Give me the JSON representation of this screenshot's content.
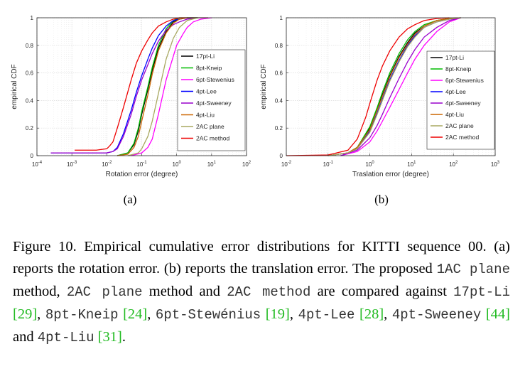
{
  "chart_data": [
    {
      "type": "line",
      "xscale": "log",
      "xlim": [
        0.0001,
        100
      ],
      "ylim": [
        0,
        1
      ],
      "xlabel": "Rotation error (degree)",
      "ylabel": "empirical CDF",
      "xticklabels": [
        "10-4",
        "10-3",
        "10-2",
        "10-1",
        "100",
        "101",
        "102"
      ],
      "yticklabels": [
        "0",
        "0.2",
        "0.4",
        "0.6",
        "0.8",
        "1"
      ],
      "grid": true,
      "legend_position": "right",
      "sublabel": "(a)",
      "series": [
        {
          "name": "17pt-Li",
          "color": "#000000",
          "x": [
            0.02,
            0.04,
            0.06,
            0.08,
            0.1,
            0.15,
            0.2,
            0.3,
            0.5,
            0.8,
            1.2,
            2,
            4
          ],
          "y": [
            0,
            0.02,
            0.08,
            0.18,
            0.3,
            0.48,
            0.62,
            0.78,
            0.9,
            0.97,
            0.99,
            1,
            1
          ]
        },
        {
          "name": "8pt-Kneip",
          "color": "#00bb00",
          "x": [
            0.02,
            0.04,
            0.06,
            0.08,
            0.1,
            0.15,
            0.2,
            0.3,
            0.5,
            0.8,
            1.2,
            2,
            4
          ],
          "y": [
            0,
            0.02,
            0.09,
            0.2,
            0.32,
            0.5,
            0.64,
            0.8,
            0.92,
            0.98,
            1,
            1,
            1
          ]
        },
        {
          "name": "6pt-Stewenius",
          "color": "#ff00ff",
          "x": [
            0.05,
            0.1,
            0.15,
            0.2,
            0.3,
            0.5,
            0.8,
            1,
            1.5,
            2,
            3,
            5,
            10
          ],
          "y": [
            0,
            0.02,
            0.06,
            0.12,
            0.3,
            0.55,
            0.72,
            0.8,
            0.88,
            0.93,
            0.97,
            0.99,
            1
          ]
        },
        {
          "name": "4pt-Lee",
          "color": "#0000ff",
          "x": [
            0.00025,
            0.001,
            0.01,
            0.015,
            0.02,
            0.03,
            0.05,
            0.07,
            0.1,
            0.15,
            0.2,
            0.3,
            0.5,
            0.8,
            1.2,
            2,
            4
          ],
          "y": [
            0.02,
            0.02,
            0.02,
            0.03,
            0.06,
            0.16,
            0.33,
            0.46,
            0.58,
            0.7,
            0.78,
            0.87,
            0.94,
            0.98,
            0.99,
            1,
            1
          ]
        },
        {
          "name": "4pt-Sweeney",
          "color": "#9900cc",
          "x": [
            0.00025,
            0.001,
            0.01,
            0.015,
            0.02,
            0.03,
            0.05,
            0.07,
            0.1,
            0.15,
            0.2,
            0.3,
            0.5,
            0.8,
            1.2,
            2,
            4,
            8
          ],
          "y": [
            0.02,
            0.02,
            0.02,
            0.03,
            0.05,
            0.14,
            0.3,
            0.43,
            0.55,
            0.66,
            0.74,
            0.83,
            0.91,
            0.95,
            0.97,
            0.99,
            1,
            1
          ]
        },
        {
          "name": "4pt-Liu",
          "color": "#cc6600",
          "x": [
            0.02,
            0.04,
            0.06,
            0.08,
            0.1,
            0.15,
            0.2,
            0.3,
            0.5,
            0.8,
            1.2,
            2,
            4
          ],
          "y": [
            0,
            0.01,
            0.06,
            0.14,
            0.25,
            0.44,
            0.59,
            0.76,
            0.89,
            0.96,
            0.99,
            1,
            1
          ]
        },
        {
          "name": "2AC plane",
          "color": "#a8a860",
          "x": [
            0.04,
            0.08,
            0.1,
            0.15,
            0.2,
            0.3,
            0.5,
            0.8,
            1.2,
            2,
            4,
            8
          ],
          "y": [
            0,
            0.02,
            0.05,
            0.14,
            0.25,
            0.45,
            0.7,
            0.85,
            0.93,
            0.98,
            1,
            1
          ]
        },
        {
          "name": "2AC method",
          "color": "#ee0000",
          "x": [
            0.0012,
            0.005,
            0.01,
            0.012,
            0.015,
            0.02,
            0.03,
            0.05,
            0.07,
            0.1,
            0.15,
            0.2,
            0.3,
            0.5,
            0.8,
            1.2,
            2
          ],
          "y": [
            0.04,
            0.04,
            0.05,
            0.07,
            0.1,
            0.2,
            0.35,
            0.55,
            0.67,
            0.76,
            0.84,
            0.89,
            0.94,
            0.97,
            0.99,
            1,
            1
          ]
        }
      ]
    },
    {
      "type": "line",
      "xscale": "log",
      "xlim": [
        0.01,
        1000
      ],
      "ylim": [
        0,
        1
      ],
      "xlabel": "Traslation error (degree)",
      "ylabel": "empirical CDF",
      "xticklabels": [
        "10-2",
        "10-1",
        "100",
        "101",
        "102",
        "103"
      ],
      "yticklabels": [
        "0",
        "0.2",
        "0.4",
        "0.6",
        "0.8",
        "1"
      ],
      "grid": true,
      "legend_position": "right",
      "sublabel": "(b)",
      "series": [
        {
          "name": "17pt-Li",
          "color": "#000000",
          "x": [
            0.1,
            0.3,
            0.5,
            1,
            1.5,
            2,
            3,
            5,
            8,
            12,
            20,
            40,
            80,
            150
          ],
          "y": [
            0,
            0.02,
            0.06,
            0.2,
            0.34,
            0.44,
            0.58,
            0.72,
            0.82,
            0.89,
            0.94,
            0.98,
            0.995,
            1
          ]
        },
        {
          "name": "8pt-Kneip",
          "color": "#00bb00",
          "x": [
            0.1,
            0.3,
            0.5,
            1,
            1.5,
            2,
            3,
            5,
            8,
            12,
            20,
            40,
            80,
            150
          ],
          "y": [
            0,
            0.02,
            0.06,
            0.21,
            0.35,
            0.46,
            0.6,
            0.74,
            0.84,
            0.9,
            0.95,
            0.98,
            0.995,
            1
          ]
        },
        {
          "name": "6pt-Stewenius",
          "color": "#ff00ff",
          "x": [
            0.2,
            0.5,
            1,
            1.5,
            2,
            3,
            5,
            8,
            12,
            20,
            40,
            80,
            150
          ],
          "y": [
            0,
            0.03,
            0.1,
            0.18,
            0.25,
            0.35,
            0.48,
            0.6,
            0.7,
            0.8,
            0.9,
            0.97,
            1
          ]
        },
        {
          "name": "4pt-Lee",
          "color": "#0000ff",
          "x": [
            0.1,
            0.3,
            0.5,
            1,
            1.5,
            2,
            3,
            5,
            8,
            12,
            20,
            40,
            80,
            150
          ],
          "y": [
            0,
            0.02,
            0.05,
            0.18,
            0.31,
            0.41,
            0.55,
            0.69,
            0.8,
            0.87,
            0.93,
            0.97,
            0.99,
            1
          ]
        },
        {
          "name": "4pt-Sweeney",
          "color": "#9900cc",
          "x": [
            0.2,
            0.5,
            1,
            1.5,
            2,
            3,
            5,
            8,
            12,
            20,
            40,
            80,
            150
          ],
          "y": [
            0,
            0.04,
            0.13,
            0.22,
            0.3,
            0.42,
            0.56,
            0.68,
            0.77,
            0.86,
            0.93,
            0.98,
            1
          ]
        },
        {
          "name": "4pt-Liu",
          "color": "#cc6600",
          "x": [
            0.1,
            0.3,
            0.5,
            1,
            1.5,
            2,
            3,
            5,
            8,
            12,
            20,
            40,
            80,
            150
          ],
          "y": [
            0,
            0.02,
            0.06,
            0.19,
            0.33,
            0.43,
            0.57,
            0.71,
            0.81,
            0.88,
            0.94,
            0.98,
            0.995,
            1
          ]
        },
        {
          "name": "2AC plane",
          "color": "#a8a860",
          "x": [
            0.1,
            0.3,
            0.5,
            1,
            1.5,
            2,
            3,
            5,
            8,
            12,
            20,
            40,
            80,
            150
          ],
          "y": [
            0,
            0.02,
            0.05,
            0.17,
            0.3,
            0.4,
            0.54,
            0.68,
            0.79,
            0.86,
            0.93,
            0.97,
            0.99,
            1
          ]
        },
        {
          "name": "2AC method",
          "color": "#ee0000",
          "x": [
            0.01,
            0.1,
            0.3,
            0.5,
            0.8,
            1,
            1.5,
            2,
            3,
            5,
            8,
            12,
            20,
            40,
            80
          ],
          "y": [
            0,
            0.005,
            0.04,
            0.12,
            0.28,
            0.38,
            0.55,
            0.65,
            0.76,
            0.86,
            0.92,
            0.95,
            0.98,
            0.995,
            1
          ]
        }
      ]
    }
  ],
  "caption": {
    "figure_label": "Figure 10.",
    "p1": " Empirical cumulative error distributions for KITTI sequence 00. (a) reports the rotation error. (b) reports the translation error. The proposed ",
    "m1": "1AC plane",
    "p2": " method, ",
    "m2": "2AC plane",
    "p3": " method and ",
    "m3": "2AC method",
    "p4": " are compared against ",
    "m4": "17pt-Li",
    "r1": "[29]",
    "p5": ", ",
    "m5": "8pt-Kneip",
    "r2": "[24]",
    "p6": ", ",
    "m6": "6pt-Stewénius",
    "r3": "[19]",
    "p7": ", ",
    "m7": "4pt-Lee",
    "r4": "[28]",
    "p8": ", ",
    "m8": "4pt-Sweeney",
    "r5": "[44]",
    "p9": " and ",
    "m9": "4pt-Liu",
    "r6": "[31]",
    "p10": "."
  }
}
